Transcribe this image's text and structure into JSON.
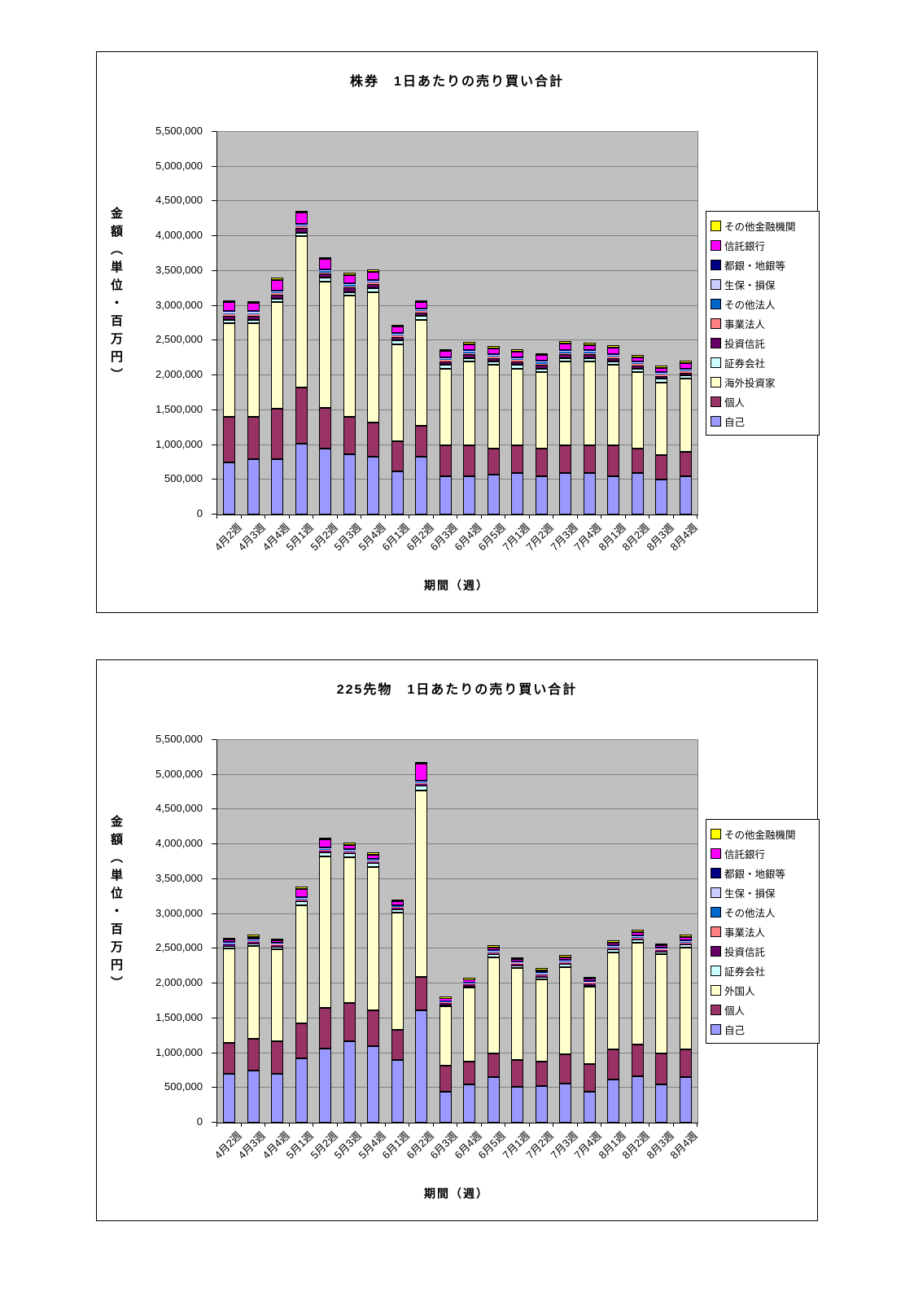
{
  "chart_data": [
    {
      "type": "bar",
      "stacked": true,
      "title": "株券　1日あたりの売り買い合計",
      "xlabel": "期間（週）",
      "ylabel": "金額（単位・百万円）",
      "ylim": [
        0,
        5500000
      ],
      "ytick_step": 500000,
      "grid": true,
      "plot_bg": "#C0C0C0",
      "legend_position": "right",
      "categories": [
        "4月2週",
        "4月3週",
        "4月4週",
        "5月1週",
        "5月2週",
        "5月3週",
        "5月4週",
        "6月1週",
        "6月2週",
        "6月3週",
        "6月4週",
        "6月5週",
        "7月1週",
        "7月2週",
        "7月3週",
        "7月4週",
        "8月1週",
        "8月2週",
        "8月3週",
        "8月4週"
      ],
      "series": [
        {
          "name": "自己",
          "color": "#9999FF",
          "values": [
            750000,
            800000,
            800000,
            1020000,
            950000,
            870000,
            830000,
            620000,
            830000,
            550000,
            550000,
            570000,
            600000,
            550000,
            600000,
            600000,
            550000,
            600000,
            500000,
            550000
          ]
        },
        {
          "name": "個人",
          "color": "#993366",
          "values": [
            650000,
            600000,
            720000,
            800000,
            580000,
            530000,
            490000,
            430000,
            450000,
            450000,
            450000,
            380000,
            400000,
            400000,
            400000,
            400000,
            450000,
            350000,
            350000,
            350000
          ]
        },
        {
          "name": "海外投資家",
          "color": "#FFFFCC",
          "values": [
            1350000,
            1350000,
            1530000,
            2180000,
            1820000,
            1750000,
            1880000,
            1400000,
            1520000,
            1100000,
            1200000,
            1200000,
            1100000,
            1100000,
            1200000,
            1200000,
            1150000,
            1100000,
            1050000,
            1050000
          ]
        },
        {
          "name": "証券会社",
          "color": "#CCFFFF",
          "values": [
            50000,
            50000,
            50000,
            50000,
            50000,
            50000,
            50000,
            50000,
            50000,
            50000,
            50000,
            50000,
            50000,
            50000,
            50000,
            50000,
            50000,
            50000,
            50000,
            50000
          ]
        },
        {
          "name": "投資信託",
          "color": "#660066",
          "values": [
            60000,
            60000,
            60000,
            70000,
            60000,
            60000,
            60000,
            50000,
            50000,
            50000,
            50000,
            50000,
            50000,
            50000,
            50000,
            50000,
            50000,
            40000,
            40000,
            40000
          ]
        },
        {
          "name": "事業法人",
          "color": "#FF8080",
          "values": [
            20000,
            20000,
            20000,
            20000,
            20000,
            20000,
            20000,
            20000,
            20000,
            20000,
            20000,
            20000,
            20000,
            20000,
            20000,
            20000,
            20000,
            20000,
            20000,
            20000
          ]
        },
        {
          "name": "その他法人",
          "color": "#0066CC",
          "values": [
            15000,
            15000,
            15000,
            15000,
            15000,
            15000,
            15000,
            15000,
            15000,
            15000,
            15000,
            15000,
            15000,
            15000,
            15000,
            15000,
            15000,
            15000,
            15000,
            15000
          ]
        },
        {
          "name": "生保・損保",
          "color": "#CCCCFF",
          "values": [
            15000,
            15000,
            15000,
            15000,
            15000,
            15000,
            15000,
            15000,
            15000,
            15000,
            15000,
            15000,
            15000,
            15000,
            15000,
            15000,
            15000,
            15000,
            15000,
            15000
          ]
        },
        {
          "name": "都銀・地銀等",
          "color": "#000080",
          "values": [
            10000,
            10000,
            10000,
            10000,
            10000,
            10000,
            10000,
            10000,
            10000,
            10000,
            10000,
            10000,
            10000,
            10000,
            10000,
            10000,
            10000,
            10000,
            10000,
            10000
          ]
        },
        {
          "name": "信託銀行",
          "color": "#FF00FF",
          "values": [
            130000,
            120000,
            150000,
            160000,
            150000,
            120000,
            120000,
            90000,
            90000,
            90000,
            90000,
            80000,
            80000,
            80000,
            100000,
            80000,
            90000,
            60000,
            60000,
            80000
          ]
        },
        {
          "name": "その他金融機関",
          "color": "#FFFF00",
          "values": [
            30000,
            30000,
            30000,
            30000,
            30000,
            30000,
            30000,
            30000,
            30000,
            30000,
            30000,
            30000,
            30000,
            30000,
            30000,
            30000,
            30000,
            30000,
            30000,
            30000
          ]
        }
      ]
    },
    {
      "type": "bar",
      "stacked": true,
      "title": "225先物　1日あたりの売り買い合計",
      "xlabel": "期間（週）",
      "ylabel": "金額（単位・百万円）",
      "ylim": [
        0,
        5500000
      ],
      "ytick_step": 500000,
      "grid": true,
      "plot_bg": "#C0C0C0",
      "legend_position": "right",
      "categories": [
        "4月2週",
        "4月3週",
        "4月4週",
        "5月1週",
        "5月2週",
        "5月3週",
        "5月4週",
        "6月1週",
        "6月2週",
        "6月3週",
        "6月4週",
        "6月5週",
        "7月1週",
        "7月2週",
        "7月3週",
        "7月4週",
        "8月1週",
        "8月2週",
        "8月3週",
        "8月4週"
      ],
      "series": [
        {
          "name": "自己",
          "color": "#9999FF",
          "values": [
            700000,
            750000,
            700000,
            930000,
            1060000,
            1170000,
            1100000,
            900000,
            1620000,
            450000,
            550000,
            650000,
            520000,
            530000,
            560000,
            450000,
            620000,
            670000,
            550000,
            650000
          ]
        },
        {
          "name": "個人",
          "color": "#993366",
          "values": [
            450000,
            450000,
            470000,
            500000,
            590000,
            550000,
            520000,
            430000,
            480000,
            370000,
            330000,
            350000,
            380000,
            350000,
            420000,
            390000,
            430000,
            450000,
            450000,
            400000
          ]
        },
        {
          "name": "外国人",
          "color": "#FFFFCC",
          "values": [
            1350000,
            1340000,
            1320000,
            1700000,
            2180000,
            2100000,
            2060000,
            1690000,
            2680000,
            850000,
            1060000,
            1380000,
            1320000,
            1180000,
            1260000,
            1110000,
            1400000,
            1470000,
            1420000,
            1470000
          ]
        },
        {
          "name": "証券会社",
          "color": "#CCFFFF",
          "values": [
            40000,
            40000,
            40000,
            50000,
            60000,
            50000,
            50000,
            50000,
            70000,
            30000,
            30000,
            40000,
            40000,
            40000,
            40000,
            30000,
            40000,
            40000,
            40000,
            40000
          ]
        },
        {
          "name": "投資信託",
          "color": "#660066",
          "values": [
            20000,
            20000,
            20000,
            20000,
            20000,
            20000,
            20000,
            20000,
            20000,
            20000,
            20000,
            20000,
            20000,
            20000,
            20000,
            20000,
            20000,
            20000,
            20000,
            20000
          ]
        },
        {
          "name": "事業法人",
          "color": "#FF8080",
          "values": [
            10000,
            10000,
            10000,
            10000,
            10000,
            10000,
            10000,
            10000,
            10000,
            10000,
            10000,
            10000,
            10000,
            10000,
            10000,
            10000,
            10000,
            10000,
            10000,
            10000
          ]
        },
        {
          "name": "その他法人",
          "color": "#0066CC",
          "values": [
            10000,
            10000,
            10000,
            10000,
            10000,
            10000,
            10000,
            10000,
            10000,
            10000,
            10000,
            10000,
            10000,
            10000,
            10000,
            10000,
            10000,
            10000,
            10000,
            10000
          ]
        },
        {
          "name": "生保・損保",
          "color": "#CCCCFF",
          "values": [
            10000,
            10000,
            10000,
            10000,
            10000,
            10000,
            10000,
            10000,
            10000,
            10000,
            10000,
            10000,
            10000,
            10000,
            10000,
            10000,
            10000,
            10000,
            10000,
            10000
          ]
        },
        {
          "name": "都銀・地銀等",
          "color": "#000080",
          "values": [
            10000,
            10000,
            10000,
            10000,
            10000,
            10000,
            10000,
            10000,
            10000,
            10000,
            10000,
            10000,
            10000,
            10000,
            10000,
            10000,
            10000,
            10000,
            10000,
            10000
          ]
        },
        {
          "name": "信託銀行",
          "color": "#FF00FF",
          "values": [
            30000,
            30000,
            30000,
            120000,
            120000,
            60000,
            60000,
            50000,
            250000,
            20000,
            20000,
            40000,
            30000,
            30000,
            40000,
            30000,
            40000,
            50000,
            30000,
            50000
          ]
        },
        {
          "name": "その他金融機関",
          "color": "#FFFF00",
          "values": [
            30000,
            30000,
            30000,
            30000,
            30000,
            30000,
            30000,
            30000,
            30000,
            30000,
            30000,
            30000,
            30000,
            30000,
            30000,
            30000,
            30000,
            30000,
            30000,
            30000
          ]
        }
      ]
    }
  ]
}
